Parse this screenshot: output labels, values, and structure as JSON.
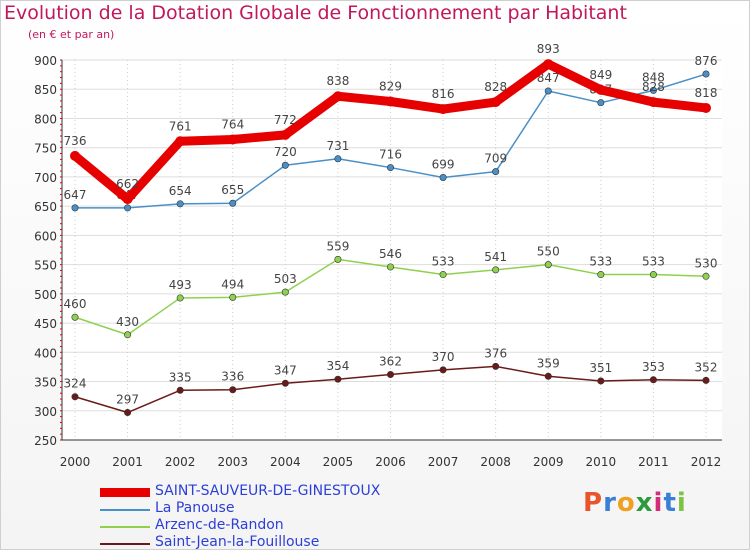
{
  "header": {
    "title": "Evolution de la Dotation Globale de Fonctionnement par Habitant",
    "subtitle": "(en € et par an)"
  },
  "logo": {
    "text": "Proxiti",
    "colors": [
      "#e8542b",
      "#3a7fd5",
      "#f0a020",
      "#2e9a3e",
      "#d62a7a",
      "#3a7fd5",
      "#7cc243"
    ]
  },
  "chart_data": {
    "type": "line",
    "title": "Evolution de la Dotation Globale de Fonctionnement par Habitant",
    "subtitle": "(en € et par an)",
    "x": [
      "2000",
      "2001",
      "2002",
      "2003",
      "2004",
      "2005",
      "2006",
      "2007",
      "2008",
      "2009",
      "2010",
      "2011",
      "2012"
    ],
    "ylim": [
      250,
      900
    ],
    "yticks": [
      250,
      300,
      350,
      400,
      450,
      500,
      550,
      600,
      650,
      700,
      750,
      800,
      850,
      900
    ],
    "grid": true,
    "legend_position": "bottom-left",
    "series": [
      {
        "name": "SAINT-SAUVEUR-DE-GINESTOUX",
        "color": "#e60000",
        "values": [
          736,
          662,
          761,
          764,
          772,
          838,
          829,
          816,
          828,
          893,
          849,
          828,
          818
        ]
      },
      {
        "name": "La Panouse",
        "color": "#4a90c8",
        "values": [
          647,
          647,
          654,
          655,
          720,
          731,
          716,
          699,
          709,
          847,
          827,
          848,
          876
        ]
      },
      {
        "name": "Arzenc-de-Randon",
        "color": "#8fd14f",
        "values": [
          460,
          430,
          493,
          494,
          503,
          559,
          546,
          533,
          541,
          550,
          533,
          533,
          530
        ]
      },
      {
        "name": "Saint-Jean-la-Fouillouse",
        "color": "#6b1a1a",
        "values": [
          324,
          297,
          335,
          336,
          347,
          354,
          362,
          370,
          376,
          359,
          351,
          353,
          352
        ]
      }
    ]
  }
}
